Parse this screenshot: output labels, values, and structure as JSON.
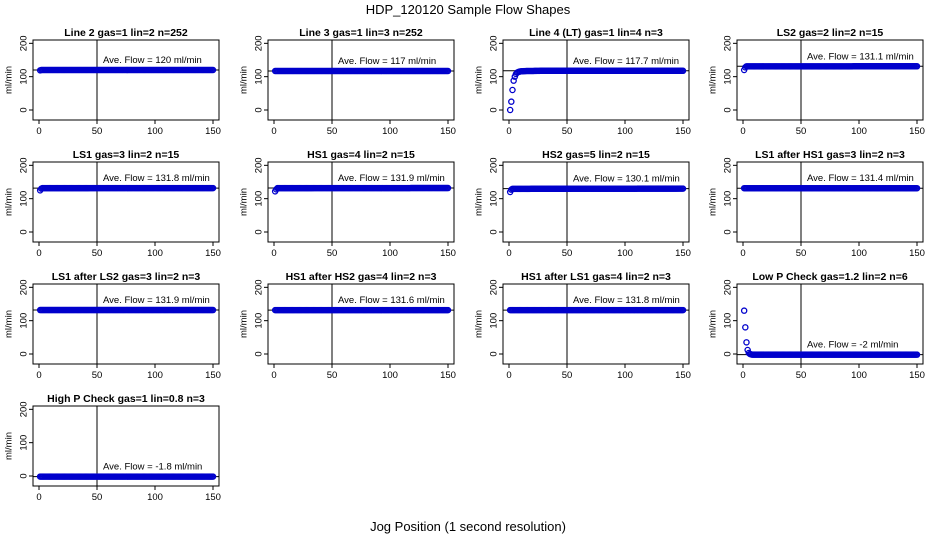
{
  "figure": {
    "title": "HDP_120120  Sample Flow Shapes",
    "xlabel": "Jog Position (1 second resolution)"
  },
  "chart_data": [
    {
      "type": "scatter",
      "title": "Line 2 gas=1 lin=2 n=252",
      "ylabel": "ml/min",
      "annotation": "Ave. Flow =  120  ml/min",
      "xlim": [
        0,
        150
      ],
      "ylim": [
        -30,
        210
      ],
      "xticks": [
        0,
        50,
        100,
        150
      ],
      "yticks": [
        0,
        100,
        200
      ],
      "vline": 50,
      "hline": 120,
      "points": [
        [
          1,
          119
        ],
        [
          2,
          120
        ],
        [
          3,
          120
        ],
        [
          150,
          120
        ]
      ]
    },
    {
      "type": "scatter",
      "title": "Line 3 gas=1 lin=3 n=252",
      "ylabel": "ml/min",
      "annotation": "Ave. Flow =  117  ml/min",
      "xlim": [
        0,
        150
      ],
      "ylim": [
        -30,
        210
      ],
      "xticks": [
        0,
        50,
        100,
        150
      ],
      "yticks": [
        0,
        100,
        200
      ],
      "vline": 50,
      "hline": 117,
      "points": [
        [
          1,
          117
        ],
        [
          150,
          117
        ]
      ]
    },
    {
      "type": "scatter",
      "title": "Line 4 (LT) gas=1 lin=4 n=3",
      "ylabel": "ml/min",
      "annotation": "Ave. Flow =  117.7  ml/min",
      "xlim": [
        0,
        150
      ],
      "ylim": [
        -30,
        210
      ],
      "xticks": [
        0,
        50,
        100,
        150
      ],
      "yticks": [
        0,
        100,
        200
      ],
      "vline": 50,
      "hline": 117.7,
      "points": [
        [
          1,
          0
        ],
        [
          2,
          25
        ],
        [
          3,
          60
        ],
        [
          4,
          88
        ],
        [
          5,
          100
        ],
        [
          6,
          108
        ],
        [
          7,
          112
        ],
        [
          8,
          114
        ],
        [
          10,
          116
        ],
        [
          15,
          117
        ],
        [
          20,
          117
        ],
        [
          25,
          117.5
        ],
        [
          30,
          117.7
        ],
        [
          40,
          117.7
        ],
        [
          150,
          117.7
        ]
      ]
    },
    {
      "type": "scatter",
      "title": "LS2 gas=2 lin=2 n=15",
      "ylabel": "ml/min",
      "annotation": "Ave. Flow =  131.1  ml/min",
      "xlim": [
        0,
        150
      ],
      "ylim": [
        -30,
        210
      ],
      "xticks": [
        0,
        50,
        100,
        150
      ],
      "yticks": [
        0,
        100,
        200
      ],
      "vline": 50,
      "hline": 131.1,
      "points": [
        [
          1,
          120
        ],
        [
          2,
          128
        ],
        [
          3,
          131
        ],
        [
          150,
          131.1
        ]
      ]
    },
    {
      "type": "scatter",
      "title": "LS1 gas=3 lin=2 n=15",
      "ylabel": "ml/min",
      "annotation": "Ave. Flow =  131.8  ml/min",
      "xlim": [
        0,
        150
      ],
      "ylim": [
        -30,
        210
      ],
      "xticks": [
        0,
        50,
        100,
        150
      ],
      "yticks": [
        0,
        100,
        200
      ],
      "vline": 50,
      "hline": 131.8,
      "points": [
        [
          1,
          125
        ],
        [
          2,
          130
        ],
        [
          3,
          131.5
        ],
        [
          150,
          131.8
        ]
      ]
    },
    {
      "type": "scatter",
      "title": "HS1 gas=4 lin=2 n=15",
      "ylabel": "ml/min",
      "annotation": "Ave. Flow =  131.9  ml/min",
      "xlim": [
        0,
        150
      ],
      "ylim": [
        -30,
        210
      ],
      "xticks": [
        0,
        50,
        100,
        150
      ],
      "yticks": [
        0,
        100,
        200
      ],
      "vline": 50,
      "hline": 131.9,
      "points": [
        [
          1,
          122
        ],
        [
          2,
          128
        ],
        [
          3,
          131.5
        ],
        [
          150,
          131.9
        ]
      ]
    },
    {
      "type": "scatter",
      "title": "HS2 gas=5 lin=2 n=15",
      "ylabel": "ml/min",
      "annotation": "Ave. Flow =  130.1  ml/min",
      "xlim": [
        0,
        150
      ],
      "ylim": [
        -30,
        210
      ],
      "xticks": [
        0,
        50,
        100,
        150
      ],
      "yticks": [
        0,
        100,
        200
      ],
      "vline": 50,
      "hline": 130.1,
      "points": [
        [
          1,
          120
        ],
        [
          2,
          127
        ],
        [
          3,
          129.5
        ],
        [
          150,
          130.1
        ]
      ]
    },
    {
      "type": "scatter",
      "title": "LS1 after HS1 gas=3 lin=2 n=3",
      "ylabel": "ml/min",
      "annotation": "Ave. Flow =  131.4  ml/min",
      "xlim": [
        0,
        150
      ],
      "ylim": [
        -30,
        210
      ],
      "xticks": [
        0,
        50,
        100,
        150
      ],
      "yticks": [
        0,
        100,
        200
      ],
      "vline": 50,
      "hline": 131.4,
      "points": [
        [
          1,
          131.4
        ],
        [
          150,
          131.4
        ]
      ]
    },
    {
      "type": "scatter",
      "title": "LS1 after LS2 gas=3 lin=2 n=3",
      "ylabel": "ml/min",
      "annotation": "Ave. Flow =  131.9  ml/min",
      "xlim": [
        0,
        150
      ],
      "ylim": [
        -30,
        210
      ],
      "xticks": [
        0,
        50,
        100,
        150
      ],
      "yticks": [
        0,
        100,
        200
      ],
      "vline": 50,
      "hline": 131.9,
      "points": [
        [
          1,
          131.9
        ],
        [
          150,
          131.9
        ]
      ]
    },
    {
      "type": "scatter",
      "title": "HS1 after HS2 gas=4 lin=2 n=3",
      "ylabel": "ml/min",
      "annotation": "Ave. Flow =  131.6  ml/min",
      "xlim": [
        0,
        150
      ],
      "ylim": [
        -30,
        210
      ],
      "xticks": [
        0,
        50,
        100,
        150
      ],
      "yticks": [
        0,
        100,
        200
      ],
      "vline": 50,
      "hline": 131.6,
      "points": [
        [
          1,
          131.6
        ],
        [
          150,
          131.6
        ]
      ]
    },
    {
      "type": "scatter",
      "title": "HS1 after LS1 gas=4 lin=2 n=3",
      "ylabel": "ml/min",
      "annotation": "Ave. Flow =  131.8  ml/min",
      "xlim": [
        0,
        150
      ],
      "ylim": [
        -30,
        210
      ],
      "xticks": [
        0,
        50,
        100,
        150
      ],
      "yticks": [
        0,
        100,
        200
      ],
      "vline": 50,
      "hline": 131.8,
      "points": [
        [
          1,
          131.8
        ],
        [
          150,
          131.8
        ]
      ]
    },
    {
      "type": "scatter",
      "title": "Low P Check gas=1.2 lin=2 n=6",
      "ylabel": "ml/min",
      "annotation": "Ave. Flow =  -2  ml/min",
      "xlim": [
        0,
        150
      ],
      "ylim": [
        -30,
        210
      ],
      "xticks": [
        0,
        50,
        100,
        150
      ],
      "yticks": [
        0,
        100,
        200
      ],
      "vline": 50,
      "hline": -2,
      "points": [
        [
          1,
          130
        ],
        [
          2,
          80
        ],
        [
          3,
          35
        ],
        [
          4,
          12
        ],
        [
          5,
          3
        ],
        [
          6,
          0
        ],
        [
          7,
          -1
        ],
        [
          8,
          -2
        ],
        [
          150,
          -2
        ]
      ]
    },
    {
      "type": "scatter",
      "title": "High P Check gas=1 lin=0.8 n=3",
      "ylabel": "ml/min",
      "annotation": "Ave. Flow =  -1.8  ml/min",
      "xlim": [
        0,
        150
      ],
      "ylim": [
        -30,
        210
      ],
      "xticks": [
        0,
        50,
        100,
        150
      ],
      "yticks": [
        0,
        100,
        200
      ],
      "vline": 50,
      "hline": -1.8,
      "points": [
        [
          1,
          -1.8
        ],
        [
          150,
          -1.8
        ]
      ]
    }
  ],
  "colors": {
    "points": "#0000cc",
    "axes": "#000000"
  }
}
